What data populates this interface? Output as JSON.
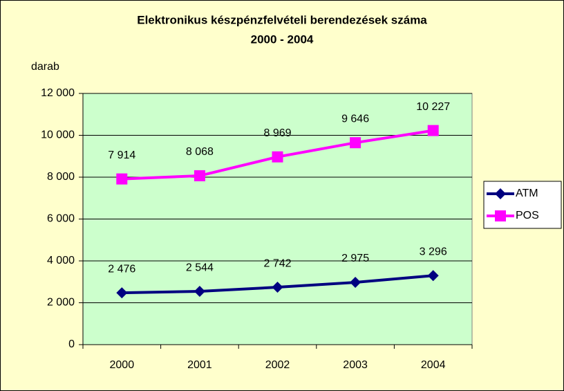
{
  "chart_data": {
    "type": "line",
    "title": "Elektronikus készpénzfelvételi berendezések száma",
    "subtitle": "2000 - 2004",
    "y_label": "darab",
    "categories": [
      "2000",
      "2001",
      "2002",
      "2003",
      "2004"
    ],
    "series": [
      {
        "name": "ATM",
        "color": "#000080",
        "marker": "diamond",
        "values": [
          2476,
          2544,
          2742,
          2975,
          3296
        ],
        "value_labels": [
          "2 476",
          "2 544",
          "2 742",
          "2 975",
          "3 296"
        ]
      },
      {
        "name": "POS",
        "color": "#ff00ff",
        "marker": "square",
        "values": [
          7914,
          8068,
          8969,
          9646,
          10227
        ],
        "value_labels": [
          "7 914",
          "8 068",
          "8 969",
          "9 646",
          "10 227"
        ]
      }
    ],
    "ylim": [
      0,
      12000
    ],
    "yticks": [
      0,
      {
        "value": 2000,
        "label": "2 000"
      },
      {
        "value": 4000,
        "label": "4 000"
      },
      {
        "value": 6000,
        "label": "6 000"
      },
      {
        "value": 8000,
        "label": "8 000"
      },
      {
        "value": 10000,
        "label": "10 000"
      },
      {
        "value": 12000,
        "label": "12 000"
      }
    ],
    "grid": true,
    "legend": "right"
  }
}
